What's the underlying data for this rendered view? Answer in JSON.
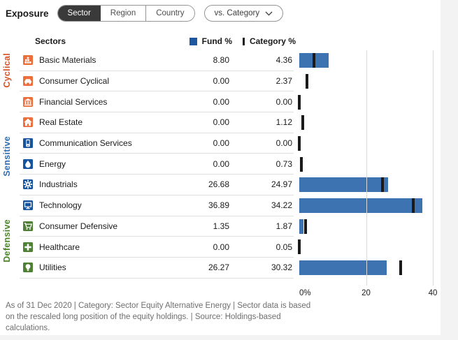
{
  "header": {
    "title": "Exposure",
    "tabs": [
      {
        "label": "Sector",
        "selected": true
      },
      {
        "label": "Region",
        "selected": false
      },
      {
        "label": "Country",
        "selected": false
      }
    ],
    "dropdown_label": "vs. Category"
  },
  "table_header": {
    "sectors": "Sectors",
    "fund": "Fund %",
    "category": "Category %"
  },
  "groups": [
    {
      "name": "Cyclical",
      "label_color": "#D6552B",
      "icon_bg": "#EB6E3B",
      "rows": [
        {
          "sector": "Basic Materials",
          "icon": "basic-materials",
          "fund": "8.80",
          "category": "4.36"
        },
        {
          "sector": "Consumer Cyclical",
          "icon": "consumer-cyclical",
          "fund": "0.00",
          "category": "2.37"
        },
        {
          "sector": "Financial Services",
          "icon": "financial-services",
          "fund": "0.00",
          "category": "0.00"
        },
        {
          "sector": "Real Estate",
          "icon": "real-estate",
          "fund": "0.00",
          "category": "1.12"
        }
      ]
    },
    {
      "name": "Sensitive",
      "label_color": "#2F6FB3",
      "icon_bg": "#17549F",
      "rows": [
        {
          "sector": "Communication Services",
          "icon": "communication-services",
          "fund": "0.00",
          "category": "0.00"
        },
        {
          "sector": "Energy",
          "icon": "energy",
          "fund": "0.00",
          "category": "0.73"
        },
        {
          "sector": "Industrials",
          "icon": "industrials",
          "fund": "26.68",
          "category": "24.97"
        },
        {
          "sector": "Technology",
          "icon": "technology",
          "fund": "36.89",
          "category": "34.22"
        }
      ]
    },
    {
      "name": "Defensive",
      "label_color": "#4A8526",
      "icon_bg": "#4F8036",
      "rows": [
        {
          "sector": "Consumer Defensive",
          "icon": "consumer-defensive",
          "fund": "1.35",
          "category": "1.87"
        },
        {
          "sector": "Healthcare",
          "icon": "healthcare",
          "fund": "0.00",
          "category": "0.05"
        },
        {
          "sector": "Utilities",
          "icon": "utilities",
          "fund": "26.27",
          "category": "30.32"
        }
      ]
    }
  ],
  "chart": {
    "bar_color": "#3D73B1",
    "tick_color": "#1A1A1A",
    "legend_fund_color": "#1C57A0",
    "axis_ticks": [
      {
        "label": "0%",
        "value": 0
      },
      {
        "label": "20",
        "value": 20
      },
      {
        "label": "40",
        "value": 40
      }
    ],
    "axis_max": 40
  },
  "chart_data": {
    "type": "bar",
    "orientation": "horizontal",
    "title": "Sector exposure: Fund vs Category",
    "categories": [
      "Basic Materials",
      "Consumer Cyclical",
      "Financial Services",
      "Real Estate",
      "Communication Services",
      "Energy",
      "Industrials",
      "Technology",
      "Consumer Defensive",
      "Healthcare",
      "Utilities"
    ],
    "series": [
      {
        "name": "Fund %",
        "values": [
          8.8,
          0.0,
          0.0,
          0.0,
          0.0,
          0.0,
          26.68,
          36.89,
          1.35,
          0.0,
          26.27
        ]
      },
      {
        "name": "Category %",
        "values": [
          4.36,
          2.37,
          0.0,
          1.12,
          0.0,
          0.73,
          24.97,
          34.22,
          1.87,
          0.05,
          30.32
        ]
      }
    ],
    "xlabel": "",
    "ylabel": "",
    "xlim": [
      0,
      40
    ],
    "x_tick_labels": [
      "0%",
      "20",
      "40"
    ],
    "grid": true,
    "legend_position": "top"
  },
  "footer_text": "As of 31 Dec 2020 | Category: Sector Equity Alternative Energy | Sector data is based on the rescaled long position of the equity holdings. | Source: Holdings-based calculations."
}
